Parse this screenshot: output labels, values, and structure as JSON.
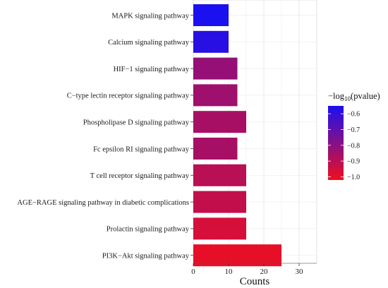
{
  "chart_data": {
    "type": "bar",
    "orientation": "horizontal",
    "categories": [
      "MAPK signaling pathway",
      "Calcium signaling pathway",
      "HIF−1 signaling pathway",
      "C−type lectin receptor signaling pathway",
      "Phospholipase D signaling pathway",
      "Fc epsilon RI signaling pathway",
      "T cell receptor signaling pathway",
      "AGE−RAGE signaling pathway in diabetic complications",
      "Prolactin signaling pathway",
      "PI3K−Akt signaling pathway"
    ],
    "values": [
      10,
      10,
      12.5,
      12.5,
      15,
      12.5,
      15,
      15,
      15,
      25
    ],
    "color_values": [
      -0.55,
      -0.58,
      -0.82,
      -0.84,
      -0.86,
      -0.86,
      -0.9,
      -0.92,
      -0.96,
      -1.0
    ],
    "xlabel": "Counts",
    "xlim": [
      0,
      35
    ],
    "xticks": [
      "0",
      "10",
      "20",
      "30"
    ],
    "xtick_values": [
      0,
      10,
      20,
      30
    ],
    "grid": true,
    "legend": {
      "title_prefix": "−log",
      "title_sub": "10",
      "title_suffix": "(pvalue)",
      "ticks": [
        "−0.6",
        "−0.7",
        "−0.8",
        "−0.9",
        "−1.0"
      ],
      "tick_values": [
        -0.6,
        -0.7,
        -0.8,
        -0.9,
        -1.0
      ],
      "range": [
        -0.55,
        -1.02
      ],
      "color_high": "#1a10f0",
      "color_low": "#f00f1e",
      "placement": "right"
    }
  }
}
